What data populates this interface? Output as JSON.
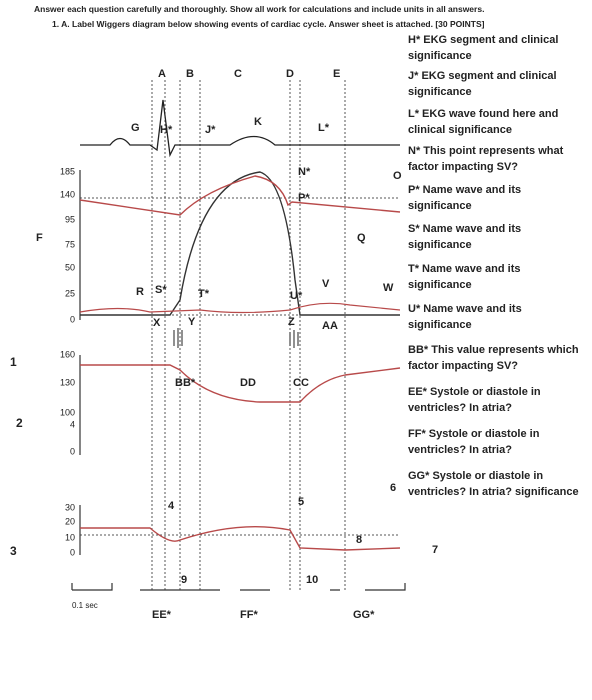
{
  "header": {
    "instruction": "Answer each question carefully and thoroughly. Show all work for calculations and include units in all answers.",
    "question": "1.  A. Label Wiggers diagram below showing events of cardiac cycle. Answer sheet is attached. [30 POINTS]"
  },
  "diagram": {
    "labels": [
      "A",
      "B",
      "C",
      "D",
      "E",
      "G",
      "H*",
      "J*",
      "K",
      "L*",
      "N*",
      "O",
      "P*",
      "Q",
      "F",
      "R",
      "S*",
      "T*",
      "U*",
      "V",
      "W",
      "X",
      "Y",
      "Z",
      "AA",
      "BB*",
      "CC",
      "DD",
      "EE*",
      "FF*",
      "GG*",
      "4",
      "5",
      "6",
      "7",
      "8",
      "9",
      "10"
    ],
    "axis_labels": [
      "185",
      "140",
      "95",
      "75",
      "50",
      "25",
      "0",
      "160",
      "130",
      "100",
      "4",
      "0",
      "30",
      "20",
      "10",
      "0"
    ],
    "row_numbers": [
      "1",
      "2",
      "3"
    ],
    "time_scale": "0.1 sec"
  },
  "questions": [
    "H* EKG segment and clinical significance",
    "J* EKG segment and clinical significance",
    "L* EKG wave found here and clinical significance",
    "N* This point represents what factor impacting SV?",
    "P* Name wave and its significance",
    "S* Name wave and its significance",
    "T* Name wave and its significance",
    "U* Name wave and its significance",
    "BB* This value represents which factor impacting SV?",
    "EE* Systole or diastole in ventricles? In atria?",
    "FF* Systole or diastole in ventricles? In atria?",
    "GG* Systole or diastole in ventricles? In atria? significance"
  ]
}
